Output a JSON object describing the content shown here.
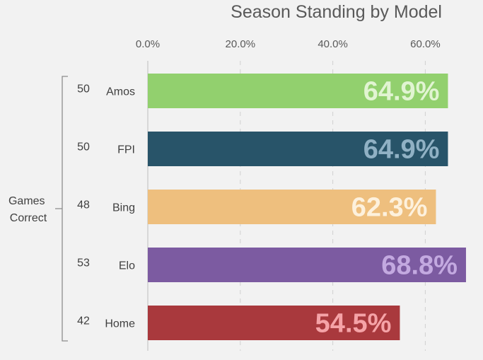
{
  "chart_data": {
    "type": "bar",
    "orientation": "horizontal",
    "title": "Season Standing by Model",
    "x_axis": {
      "position": "top",
      "range": [
        0,
        70
      ],
      "ticks": [
        0,
        20,
        40,
        60
      ],
      "tick_labels": [
        "0.0%",
        "20.0%",
        "40.0%",
        "60.0%"
      ]
    },
    "grid": true,
    "side_label": [
      "Games",
      "Correct"
    ],
    "categories": [
      "Amos",
      "FPI",
      "Bing",
      "Elo",
      "Home"
    ],
    "games_correct": [
      "50",
      "50",
      "48",
      "53",
      "42"
    ],
    "values": [
      64.9,
      64.9,
      62.3,
      68.8,
      54.5
    ],
    "data_labels": [
      "64.9%",
      "64.9%",
      "62.3%",
      "68.8%",
      "54.5%"
    ],
    "bar_colors": [
      "#92d06e",
      "#285469",
      "#eebf7e",
      "#7c5ba1",
      "#a9393d"
    ],
    "label_colors": [
      "#e1f4d2",
      "#90b1c4",
      "#fdf1dd",
      "#c3a9e0",
      "#f5a3a7"
    ]
  }
}
